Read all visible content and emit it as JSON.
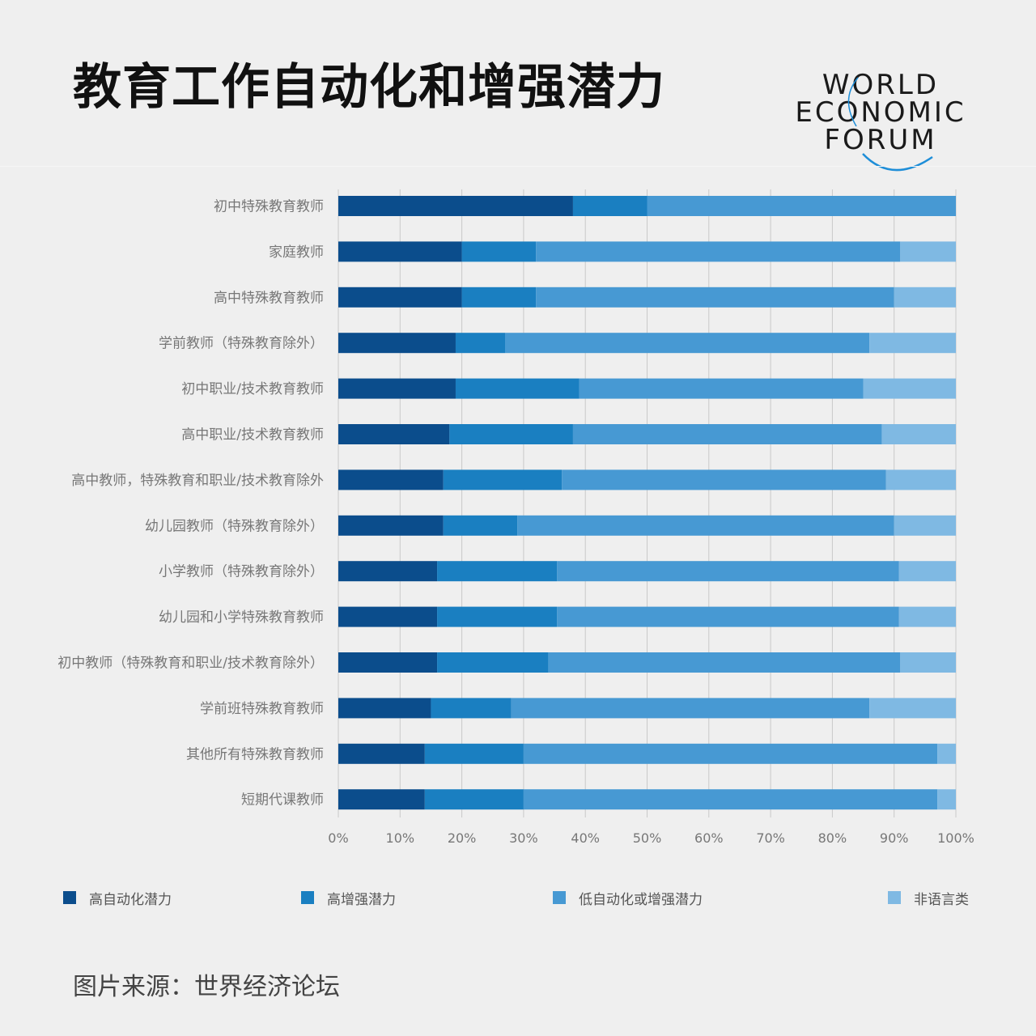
{
  "title": "教育工作自动化和增强潜力",
  "logo": {
    "line1": "WORLD",
    "line2": "ECONOMIC",
    "line3": "FORUM"
  },
  "source": "图片来源：世界经济论坛",
  "colors": {
    "high_automation": "#0b4d8c",
    "high_augmentation": "#1a7fc1",
    "low_potential": "#4799d3",
    "non_language": "#7fb9e3",
    "background": "#efefef",
    "grid": "#c9c9c9"
  },
  "chart_data": {
    "type": "bar",
    "orientation": "horizontal",
    "stacked": true,
    "categories": [
      "初中特殊教育教师",
      "家庭教师",
      "高中特殊教育教师",
      "学前教师（特殊教育除外）",
      "初中职业/技术教育教师",
      "高中职业/技术教育教师",
      "高中教师，特殊教育和职业/技术教育除外",
      "幼儿园教师（特殊教育除外）",
      "小学教师（特殊教育除外）",
      "幼儿园和小学特殊教育教师",
      "初中教师（特殊教育和职业/技术教育除外）",
      "学前班特殊教育教师",
      "其他所有特殊教育教师",
      "短期代课教师"
    ],
    "series": [
      {
        "name": "高自动化潜力",
        "color": "#0b4d8c",
        "values": [
          38,
          20,
          20,
          19,
          19,
          18,
          17,
          17,
          16,
          16,
          16,
          15,
          14,
          14
        ]
      },
      {
        "name": "高增强潜力",
        "color": "#1a7fc1",
        "values": [
          12,
          12,
          12,
          8,
          20,
          20,
          19.2,
          12,
          19.4,
          19.4,
          18,
          13,
          16,
          16
        ]
      },
      {
        "name": "低自动化或增强潜力",
        "color": "#4799d3",
        "values": [
          50,
          59,
          58,
          59,
          46,
          50,
          52.5,
          61,
          55.4,
          55.4,
          57,
          58,
          67,
          67
        ]
      },
      {
        "name": "非语言类",
        "color": "#7fb9e3",
        "values": [
          0,
          9,
          10,
          14,
          15,
          12,
          11.3,
          10,
          9.2,
          9.2,
          9,
          14,
          3,
          3
        ]
      }
    ],
    "xlim": [
      0,
      100
    ],
    "xticks": [
      "0%",
      "10%",
      "20%",
      "30%",
      "40%",
      "50%",
      "60%",
      "70%",
      "80%",
      "90%",
      "100%"
    ],
    "grid": true,
    "legend_position": "bottom"
  }
}
